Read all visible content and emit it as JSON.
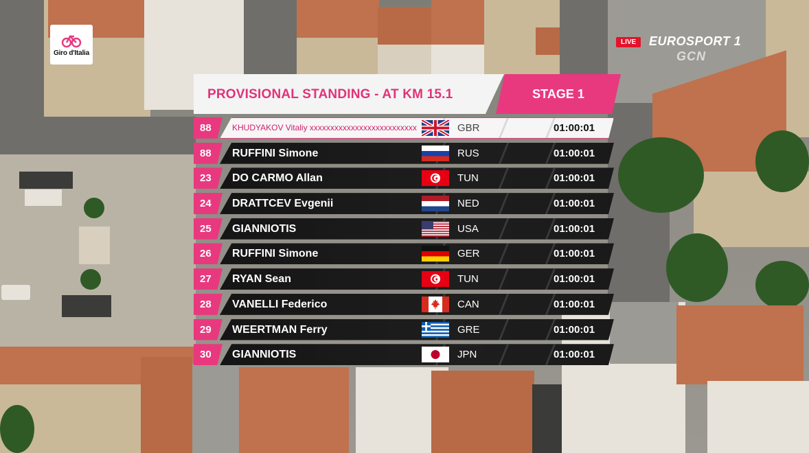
{
  "broadcast": {
    "giro_logo_text": "Giro d'Italia",
    "live_label": "LIVE",
    "channel_name": "EUROSPORT 1",
    "sub_brand": "GCN"
  },
  "header": {
    "title": "PROVISIONAL STANDING - AT KM 15.1",
    "stage": "STAGE 1"
  },
  "colors": {
    "accent": "#e8397f",
    "bar": "#1a1a1a",
    "highlight": "#f6f6f6"
  },
  "standings": [
    {
      "pos": "88",
      "name": "KHUDYAKOV Vitaliy xxxxxxxxxxxxxxxxxxxxxxxxxx",
      "flag": "flag-gb",
      "nat": "GBR",
      "time": "01:00:01",
      "highlight": true
    },
    {
      "pos": "88",
      "name": "RUFFINI Simone",
      "flag": "flag-ru",
      "nat": "RUS",
      "time": "01:00:01"
    },
    {
      "pos": "23",
      "name": "DO CARMO Allan",
      "flag": "flag-tn",
      "nat": "TUN",
      "time": "01:00:01"
    },
    {
      "pos": "24",
      "name": "DRATTCEV Evgenii",
      "flag": "flag-nl",
      "nat": "NED",
      "time": "01:00:01"
    },
    {
      "pos": "25",
      "name": "GIANNIOTIS",
      "flag": "flag-us",
      "nat": "USA",
      "time": "01:00:01"
    },
    {
      "pos": "26",
      "name": "RUFFINI Simone",
      "flag": "flag-de",
      "nat": "GER",
      "time": "01:00:01"
    },
    {
      "pos": "27",
      "name": "RYAN Sean",
      "flag": "flag-tn",
      "nat": "TUN",
      "time": "01:00:01"
    },
    {
      "pos": "28",
      "name": "VANELLI Federico",
      "flag": "flag-ca",
      "nat": "CAN",
      "time": "01:00:01"
    },
    {
      "pos": "29",
      "name": "WEERTMAN Ferry",
      "flag": "flag-gr",
      "nat": "GRE",
      "time": "01:00:01"
    },
    {
      "pos": "30",
      "name": "GIANNIOTIS",
      "flag": "flag-jp",
      "nat": "JPN",
      "time": "01:00:01"
    }
  ]
}
